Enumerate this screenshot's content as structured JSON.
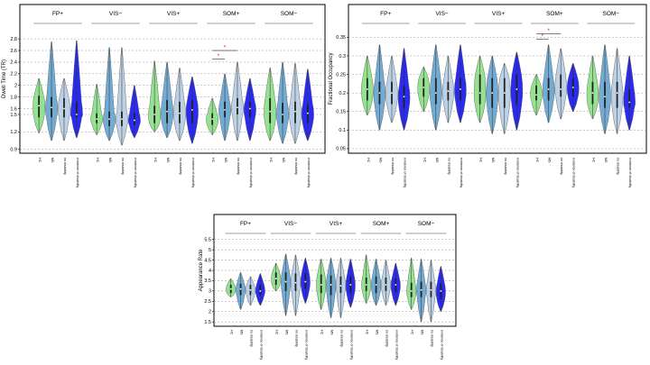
{
  "chart_data": [
    {
      "type": "violin",
      "ylabel": "Dwell Time (TR)",
      "ylim": [
        0.88,
        3.05
      ],
      "yticks": [
        0.9,
        1.2,
        1.5,
        1.6,
        1.8,
        2.0,
        2.2,
        2.4,
        2.6,
        2.8
      ],
      "groups": [
        "FP+",
        "VIS−",
        "VIS+",
        "SOM+",
        "SOM−"
      ],
      "categories": [
        "HC",
        "MS",
        "no disability",
        "evidence of disability"
      ],
      "colors": [
        "#8fe08a",
        "#6aa7d1",
        "#b8cfe3",
        "#1f1ff0"
      ],
      "series": [
        {
          "group": "FP+",
          "violins": [
            {
              "min": 1.18,
              "q1": 1.45,
              "median": 1.65,
              "q3": 1.82,
              "max": 2.12
            },
            {
              "min": 1.05,
              "q1": 1.45,
              "median": 1.62,
              "q3": 1.8,
              "max": 2.75
            },
            {
              "min": 1.05,
              "q1": 1.45,
              "median": 1.6,
              "q3": 1.78,
              "max": 2.12
            },
            {
              "min": 1.1,
              "q1": 1.45,
              "median": 1.5,
              "q3": 1.72,
              "max": 2.77
            }
          ]
        },
        {
          "group": "VIS−",
          "violins": [
            {
              "min": 1.15,
              "q1": 1.35,
              "median": 1.42,
              "q3": 1.52,
              "max": 2.02
            },
            {
              "min": 1.05,
              "q1": 1.3,
              "median": 1.42,
              "q3": 1.55,
              "max": 2.65
            },
            {
              "min": 0.97,
              "q1": 1.3,
              "median": 1.42,
              "q3": 1.55,
              "max": 2.65
            },
            {
              "min": 1.1,
              "q1": 1.32,
              "median": 1.4,
              "q3": 1.52,
              "max": 2.0
            }
          ]
        },
        {
          "group": "VIS+",
          "violins": [
            {
              "min": 1.2,
              "q1": 1.35,
              "median": 1.5,
              "q3": 1.65,
              "max": 2.42
            },
            {
              "min": 1.1,
              "q1": 1.35,
              "median": 1.55,
              "q3": 1.75,
              "max": 2.4
            },
            {
              "min": 1.05,
              "q1": 1.35,
              "median": 1.52,
              "q3": 1.72,
              "max": 2.3
            },
            {
              "min": 1.0,
              "q1": 1.35,
              "median": 1.58,
              "q3": 1.75,
              "max": 2.15
            }
          ]
        },
        {
          "group": "SOM+",
          "violins": [
            {
              "min": 1.15,
              "q1": 1.32,
              "median": 1.42,
              "q3": 1.52,
              "max": 1.78
            },
            {
              "min": 1.05,
              "q1": 1.45,
              "median": 1.58,
              "q3": 1.72,
              "max": 2.2
            },
            {
              "min": 1.05,
              "q1": 1.5,
              "median": 1.62,
              "q3": 1.78,
              "max": 2.4
            },
            {
              "min": 1.05,
              "q1": 1.45,
              "median": 1.6,
              "q3": 1.72,
              "max": 2.12
            }
          ]
        },
        {
          "group": "SOM−",
          "violins": [
            {
              "min": 1.05,
              "q1": 1.35,
              "median": 1.55,
              "q3": 1.78,
              "max": 2.3
            },
            {
              "min": 1.0,
              "q1": 1.35,
              "median": 1.5,
              "q3": 1.7,
              "max": 2.4
            },
            {
              "min": 1.0,
              "q1": 1.35,
              "median": 1.55,
              "q3": 1.72,
              "max": 2.38
            },
            {
              "min": 1.05,
              "q1": 1.35,
              "median": 1.52,
              "q3": 1.68,
              "max": 2.28
            }
          ]
        }
      ],
      "significance": [
        {
          "group": 3,
          "from": 0,
          "to": 2,
          "level": 2.6,
          "marker": "*"
        },
        {
          "group": 3,
          "from": 0,
          "to": 1,
          "level": 2.45,
          "marker": "*"
        }
      ]
    },
    {
      "type": "violin",
      "ylabel": "Fractional Occupancy",
      "ylim": [
        0.045,
        0.385
      ],
      "yticks": [
        0.05,
        0.1,
        0.15,
        0.2,
        0.25,
        0.3,
        0.35
      ],
      "groups": [
        "FP+",
        "VIS−",
        "VIS+",
        "SOM+",
        "SOM−"
      ],
      "categories": [
        "HC",
        "MS",
        "no disability",
        "evidence of disability"
      ],
      "colors": [
        "#8fe08a",
        "#6aa7d1",
        "#b8cfe3",
        "#1f1ff0"
      ],
      "series": [
        {
          "group": "FP+",
          "violins": [
            {
              "min": 0.14,
              "q1": 0.18,
              "median": 0.21,
              "q3": 0.24,
              "max": 0.3
            },
            {
              "min": 0.1,
              "q1": 0.17,
              "median": 0.2,
              "q3": 0.23,
              "max": 0.33
            },
            {
              "min": 0.12,
              "q1": 0.17,
              "median": 0.2,
              "q3": 0.23,
              "max": 0.3
            },
            {
              "min": 0.1,
              "q1": 0.16,
              "median": 0.19,
              "q3": 0.22,
              "max": 0.32
            }
          ]
        },
        {
          "group": "VIS−",
          "violins": [
            {
              "min": 0.15,
              "q1": 0.19,
              "median": 0.215,
              "q3": 0.24,
              "max": 0.27
            },
            {
              "min": 0.1,
              "q1": 0.17,
              "median": 0.2,
              "q3": 0.24,
              "max": 0.33
            },
            {
              "min": 0.12,
              "q1": 0.18,
              "median": 0.205,
              "q3": 0.23,
              "max": 0.3
            },
            {
              "min": 0.12,
              "q1": 0.18,
              "median": 0.21,
              "q3": 0.24,
              "max": 0.33
            }
          ]
        },
        {
          "group": "VIS+",
          "violins": [
            {
              "min": 0.12,
              "q1": 0.17,
              "median": 0.2,
              "q3": 0.25,
              "max": 0.3
            },
            {
              "min": 0.09,
              "q1": 0.16,
              "median": 0.2,
              "q3": 0.24,
              "max": 0.3
            },
            {
              "min": 0.09,
              "q1": 0.16,
              "median": 0.2,
              "q3": 0.24,
              "max": 0.28
            },
            {
              "min": 0.1,
              "q1": 0.17,
              "median": 0.21,
              "q3": 0.25,
              "max": 0.31
            }
          ]
        },
        {
          "group": "SOM+",
          "violins": [
            {
              "min": 0.14,
              "q1": 0.18,
              "median": 0.195,
              "q3": 0.22,
              "max": 0.25
            },
            {
              "min": 0.12,
              "q1": 0.18,
              "median": 0.21,
              "q3": 0.24,
              "max": 0.33
            },
            {
              "min": 0.13,
              "q1": 0.19,
              "median": 0.21,
              "q3": 0.25,
              "max": 0.32
            },
            {
              "min": 0.15,
              "q1": 0.19,
              "median": 0.215,
              "q3": 0.24,
              "max": 0.28
            }
          ]
        },
        {
          "group": "SOM−",
          "violins": [
            {
              "min": 0.13,
              "q1": 0.17,
              "median": 0.2,
              "q3": 0.23,
              "max": 0.3
            },
            {
              "min": 0.09,
              "q1": 0.16,
              "median": 0.19,
              "q3": 0.23,
              "max": 0.33
            },
            {
              "min": 0.09,
              "q1": 0.16,
              "median": 0.2,
              "q3": 0.23,
              "max": 0.32
            },
            {
              "min": 0.1,
              "q1": 0.16,
              "median": 0.175,
              "q3": 0.21,
              "max": 0.3
            }
          ]
        }
      ],
      "significance": [
        {
          "group": 3,
          "from": 0,
          "to": 2,
          "level": 0.36,
          "marker": "*"
        },
        {
          "group": 3,
          "from": 0,
          "to": 1,
          "level": 0.345,
          "marker": "*"
        }
      ]
    },
    {
      "type": "violin",
      "ylabel": "Appearance Rate",
      "ylim": [
        1.42,
        5.75
      ],
      "yticks": [
        1.5,
        2,
        2.5,
        3,
        3.5,
        4,
        4.5,
        5,
        5.5
      ],
      "groups": [
        "FP+",
        "VIS−",
        "VIS+",
        "SOM+",
        "SOM−"
      ],
      "categories": [
        "HC",
        "MS",
        "no disability",
        "evidence of disability"
      ],
      "colors": [
        "#8fe08a",
        "#6aa7d1",
        "#b8cfe3",
        "#1f1ff0"
      ],
      "series": [
        {
          "group": "FP+",
          "violins": [
            {
              "min": 2.7,
              "q1": 2.9,
              "median": 3.1,
              "q3": 3.3,
              "max": 3.6
            },
            {
              "min": 2.1,
              "q1": 2.8,
              "median": 3.1,
              "q3": 3.35,
              "max": 3.9
            },
            {
              "min": 2.3,
              "q1": 2.8,
              "median": 3.05,
              "q3": 3.3,
              "max": 3.7
            },
            {
              "min": 2.3,
              "q1": 2.8,
              "median": 3.0,
              "q3": 3.3,
              "max": 3.85
            }
          ]
        },
        {
          "group": "VIS−",
          "violins": [
            {
              "min": 3.0,
              "q1": 3.3,
              "median": 3.6,
              "q3": 3.9,
              "max": 4.35
            },
            {
              "min": 1.8,
              "q1": 3.0,
              "median": 3.45,
              "q3": 3.9,
              "max": 4.8
            },
            {
              "min": 1.8,
              "q1": 3.0,
              "median": 3.4,
              "q3": 3.85,
              "max": 4.75
            },
            {
              "min": 2.4,
              "q1": 3.1,
              "median": 3.45,
              "q3": 3.85,
              "max": 4.6
            }
          ]
        },
        {
          "group": "VIS+",
          "violins": [
            {
              "min": 2.1,
              "q1": 2.9,
              "median": 3.3,
              "q3": 3.8,
              "max": 4.55
            },
            {
              "min": 1.7,
              "q1": 2.8,
              "median": 3.3,
              "q3": 3.75,
              "max": 4.6
            },
            {
              "min": 1.7,
              "q1": 2.9,
              "median": 3.25,
              "q3": 3.7,
              "max": 4.6
            },
            {
              "min": 2.2,
              "q1": 2.9,
              "median": 3.3,
              "q3": 3.7,
              "max": 4.55
            }
          ]
        },
        {
          "group": "SOM+",
          "violins": [
            {
              "min": 2.4,
              "q1": 3.0,
              "median": 3.3,
              "q3": 3.65,
              "max": 4.75
            },
            {
              "min": 2.3,
              "q1": 2.9,
              "median": 3.3,
              "q3": 3.7,
              "max": 4.55
            },
            {
              "min": 2.3,
              "q1": 3.0,
              "median": 3.3,
              "q3": 3.65,
              "max": 4.5
            },
            {
              "min": 2.3,
              "q1": 2.95,
              "median": 3.3,
              "q3": 3.6,
              "max": 4.35
            }
          ]
        },
        {
          "group": "SOM−",
          "violins": [
            {
              "min": 2.1,
              "q1": 2.7,
              "median": 3.0,
              "q3": 3.4,
              "max": 4.6
            },
            {
              "min": 1.5,
              "q1": 2.7,
              "median": 3.05,
              "q3": 3.45,
              "max": 4.55
            },
            {
              "min": 1.5,
              "q1": 2.7,
              "median": 3.05,
              "q3": 3.45,
              "max": 4.5
            },
            {
              "min": 2.0,
              "q1": 2.6,
              "median": 3.0,
              "q3": 3.35,
              "max": 4.2
            }
          ]
        }
      ],
      "significance": []
    }
  ]
}
